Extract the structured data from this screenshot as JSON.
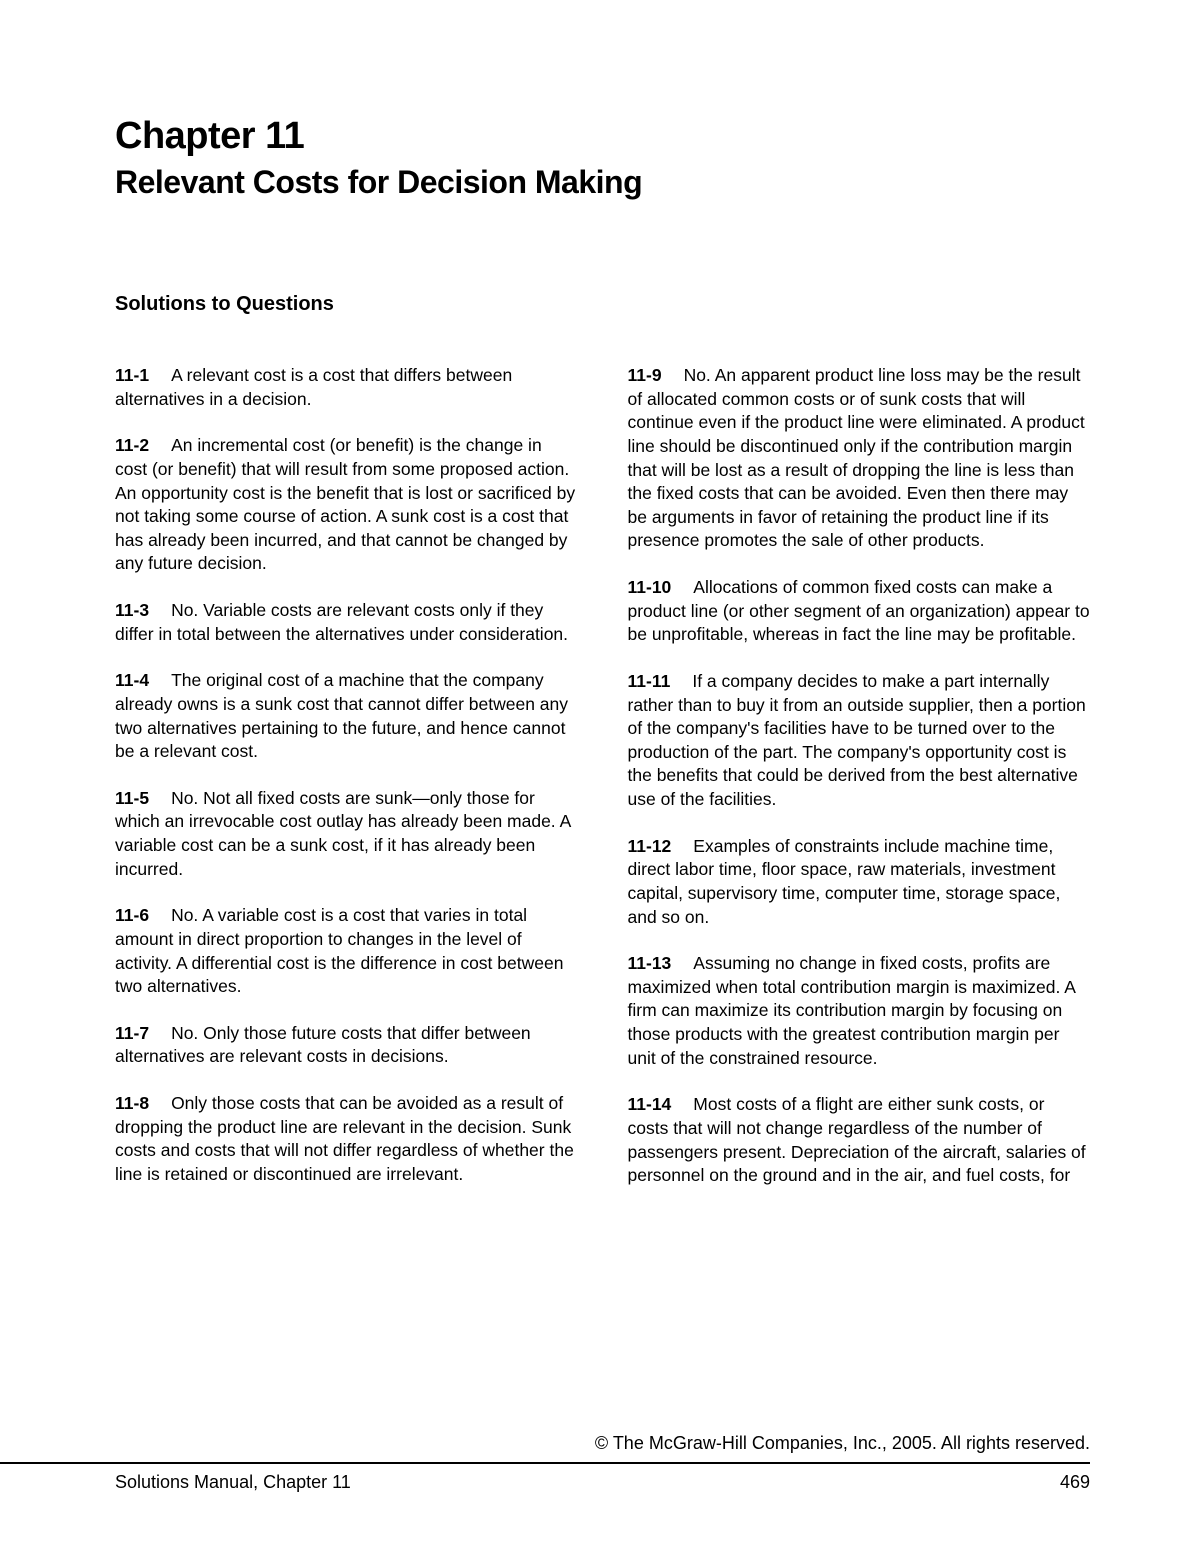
{
  "chapter": {
    "title": "Chapter 11",
    "subtitle": "Relevant Costs for Decision Making"
  },
  "section_heading": "Solutions to Questions",
  "questions_col1": [
    {
      "label": "11-1",
      "text": "A relevant cost is a cost that differs between alternatives in a decision."
    },
    {
      "label": "11-2",
      "text": "An incremental cost (or benefit) is the change in cost (or benefit) that will result from some proposed action. An opportunity cost is the benefit that is lost or sacrificed by not taking some course of action. A sunk cost is a cost that has already been incurred, and that cannot be changed by any future decision."
    },
    {
      "label": "11-3",
      "text": "No. Variable costs are relevant costs only if they differ in total between the alternatives under consideration."
    },
    {
      "label": "11-4",
      "text": "The original cost of a machine that the company already owns is a sunk cost that cannot differ between any two alternatives pertaining to the future, and hence cannot be a relevant cost."
    },
    {
      "label": "11-5",
      "text": "No. Not all fixed costs are sunk—only those for which an irrevocable cost outlay has already been made. A variable cost can be a sunk cost, if it has already been incurred."
    },
    {
      "label": "11-6",
      "text": "No. A variable cost is a cost that varies in total amount in direct proportion to changes in the level of activity. A differential cost is the difference in cost between two alternatives."
    },
    {
      "label": "11-7",
      "text": "No. Only those future costs that differ between alternatives are relevant costs in decisions."
    },
    {
      "label": "11-8",
      "text": "Only those costs that can be avoided as a result of dropping the product line are relevant in the decision. Sunk costs and costs that will not differ regardless of whether the line is retained or discontinued are irrelevant."
    }
  ],
  "questions_col2": [
    {
      "label": "11-9",
      "text": "No. An apparent product line loss may be the result of allocated common costs or of sunk costs that will continue even if the product line were eliminated. A product line should be discontinued only if the contribution margin that will be lost as a result of dropping the line is less than the fixed costs that can be avoided. Even then there may be arguments in favor of retaining the product line if its presence promotes the sale of other products."
    },
    {
      "label": "11-10",
      "text": "Allocations of common fixed costs can make a product line (or other segment of an organization) appear to be unprofitable, whereas in fact the line may be profitable."
    },
    {
      "label": "11-11",
      "text": "If a company decides to make a part internally rather than to buy it from an outside supplier, then a portion of the company's facilities have to be turned over to the production of the part. The company's opportunity cost is the benefits that could be derived from the best alternative use of the facilities."
    },
    {
      "label": "11-12",
      "text": "Examples of constraints include machine time, direct labor time, floor space, raw materials, investment capital, supervisory time, computer time, storage space, and so on."
    },
    {
      "label": "11-13",
      "text": "Assuming no change in fixed costs, profits are maximized when total contribution margin is maximized. A firm can maximize its contribution margin by focusing on those products with the greatest contribution margin per unit of the constrained resource."
    },
    {
      "label": "11-14",
      "text": "Most costs of a flight are either sunk costs, or costs that will not change regardless of the number of passengers present. Depreciation of the aircraft, salaries of personnel on the ground and in the air, and fuel costs, for"
    }
  ],
  "footer": {
    "copyright": "© The McGraw-Hill Companies, Inc., 2005. All rights reserved.",
    "manual": "Solutions Manual, Chapter 11",
    "page": "469"
  }
}
